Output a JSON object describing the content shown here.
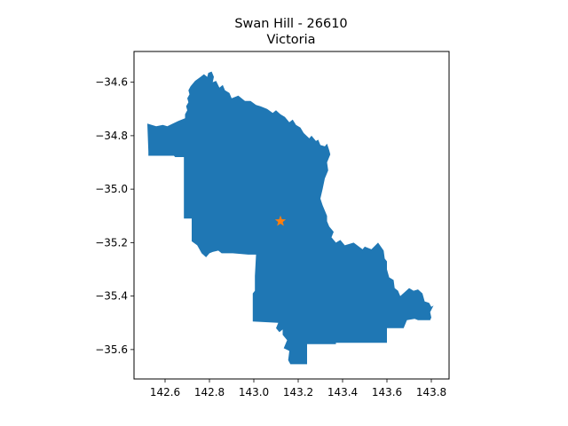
{
  "title": {
    "line1": "Swan Hill - 26610",
    "line2": "Victoria"
  },
  "colors": {
    "region_fill": "#1f77b4",
    "marker": "#ff7f0e",
    "axes": "#000000",
    "background": "#ffffff"
  },
  "chart_data": {
    "type": "map",
    "title": "Swan Hill - 26610\nVictoria",
    "xlabel": "",
    "ylabel": "",
    "xlim": [
      142.46,
      143.88
    ],
    "ylim": [
      -35.71,
      -34.485
    ],
    "x_ticks": [
      142.6,
      142.8,
      143.0,
      143.2,
      143.4,
      143.6,
      143.8
    ],
    "x_tick_labels": [
      "142.6",
      "142.8",
      "143.0",
      "143.2",
      "143.4",
      "143.6",
      "143.8"
    ],
    "y_ticks": [
      -34.6,
      -34.8,
      -35.0,
      -35.2,
      -35.4,
      -35.6
    ],
    "y_tick_labels": [
      "−34.6",
      "−34.8",
      "−35.0",
      "−35.2",
      "−35.4",
      "−35.6"
    ],
    "grid": false,
    "region": {
      "name": "Swan Hill - 26610",
      "fill": "#1f77b4",
      "boundary": [
        [
          142.52,
          -34.755
        ],
        [
          142.56,
          -34.765
        ],
        [
          142.59,
          -34.76
        ],
        [
          142.61,
          -34.765
        ],
        [
          142.635,
          -34.755
        ],
        [
          142.66,
          -34.745
        ],
        [
          142.69,
          -34.735
        ],
        [
          142.69,
          -34.72
        ],
        [
          142.7,
          -34.705
        ],
        [
          142.695,
          -34.69
        ],
        [
          142.705,
          -34.675
        ],
        [
          142.7,
          -34.66
        ],
        [
          142.71,
          -34.645
        ],
        [
          142.705,
          -34.63
        ],
        [
          142.715,
          -34.615
        ],
        [
          142.735,
          -34.595
        ],
        [
          142.76,
          -34.58
        ],
        [
          142.775,
          -34.57
        ],
        [
          142.79,
          -34.58
        ],
        [
          142.795,
          -34.565
        ],
        [
          142.81,
          -34.56
        ],
        [
          142.82,
          -34.58
        ],
        [
          142.815,
          -34.6
        ],
        [
          142.83,
          -34.595
        ],
        [
          142.845,
          -34.62
        ],
        [
          142.86,
          -34.61
        ],
        [
          142.87,
          -34.63
        ],
        [
          142.89,
          -34.64
        ],
        [
          142.9,
          -34.66
        ],
        [
          142.93,
          -34.65
        ],
        [
          142.96,
          -34.67
        ],
        [
          142.985,
          -34.67
        ],
        [
          143.01,
          -34.685
        ],
        [
          143.03,
          -34.69
        ],
        [
          143.06,
          -34.7
        ],
        [
          143.085,
          -34.715
        ],
        [
          143.1,
          -34.705
        ],
        [
          143.12,
          -34.72
        ],
        [
          143.14,
          -34.73
        ],
        [
          143.16,
          -34.75
        ],
        [
          143.175,
          -34.74
        ],
        [
          143.19,
          -34.76
        ],
        [
          143.21,
          -34.77
        ],
        [
          143.225,
          -34.79
        ],
        [
          143.25,
          -34.81
        ],
        [
          143.26,
          -34.8
        ],
        [
          143.28,
          -34.82
        ],
        [
          143.29,
          -34.815
        ],
        [
          143.3,
          -34.835
        ],
        [
          143.32,
          -34.84
        ],
        [
          143.33,
          -34.83
        ],
        [
          143.34,
          -34.855
        ],
        [
          143.345,
          -34.87
        ],
        [
          143.33,
          -34.9
        ],
        [
          143.335,
          -34.93
        ],
        [
          143.32,
          -34.96
        ],
        [
          143.31,
          -35.0
        ],
        [
          143.3,
          -35.035
        ],
        [
          143.31,
          -35.06
        ],
        [
          143.32,
          -35.08
        ],
        [
          143.33,
          -35.1
        ],
        [
          143.33,
          -35.12
        ],
        [
          143.34,
          -35.14
        ],
        [
          143.36,
          -35.16
        ],
        [
          143.35,
          -35.18
        ],
        [
          143.37,
          -35.2
        ],
        [
          143.39,
          -35.19
        ],
        [
          143.41,
          -35.21
        ],
        [
          143.45,
          -35.2
        ],
        [
          143.49,
          -35.225
        ],
        [
          143.5,
          -35.215
        ],
        [
          143.53,
          -35.225
        ],
        [
          143.56,
          -35.2
        ],
        [
          143.585,
          -35.23
        ],
        [
          143.59,
          -35.26
        ],
        [
          143.6,
          -35.27
        ],
        [
          143.6,
          -35.3
        ],
        [
          143.61,
          -35.33
        ],
        [
          143.63,
          -35.34
        ],
        [
          143.635,
          -35.37
        ],
        [
          143.65,
          -35.38
        ],
        [
          143.66,
          -35.4
        ],
        [
          143.68,
          -35.385
        ],
        [
          143.7,
          -35.37
        ],
        [
          143.72,
          -35.38
        ],
        [
          143.74,
          -35.375
        ],
        [
          143.76,
          -35.39
        ],
        [
          143.77,
          -35.42
        ],
        [
          143.79,
          -35.425
        ],
        [
          143.8,
          -35.44
        ],
        [
          143.81,
          -35.435
        ],
        [
          143.795,
          -35.46
        ],
        [
          143.8,
          -35.48
        ],
        [
          143.795,
          -35.49
        ],
        [
          143.74,
          -35.49
        ],
        [
          143.725,
          -35.485
        ],
        [
          143.69,
          -35.49
        ],
        [
          143.675,
          -35.52
        ],
        [
          143.6,
          -35.52
        ],
        [
          143.6,
          -35.575
        ],
        [
          143.37,
          -35.575
        ],
        [
          143.37,
          -35.58
        ],
        [
          143.24,
          -35.58
        ],
        [
          143.24,
          -35.655
        ],
        [
          143.165,
          -35.655
        ],
        [
          143.155,
          -35.64
        ],
        [
          143.16,
          -35.605
        ],
        [
          143.135,
          -35.595
        ],
        [
          143.15,
          -35.565
        ],
        [
          143.13,
          -35.545
        ],
        [
          143.13,
          -35.525
        ],
        [
          143.115,
          -35.535
        ],
        [
          143.1,
          -35.52
        ],
        [
          143.11,
          -35.5
        ],
        [
          142.995,
          -35.495
        ],
        [
          142.995,
          -35.39
        ],
        [
          143.005,
          -35.38
        ],
        [
          143.005,
          -35.325
        ],
        [
          143.01,
          -35.245
        ],
        [
          142.975,
          -35.245
        ],
        [
          142.905,
          -35.24
        ],
        [
          142.855,
          -35.24
        ],
        [
          142.84,
          -35.23
        ],
        [
          142.815,
          -35.235
        ],
        [
          142.8,
          -35.24
        ],
        [
          142.785,
          -35.255
        ],
        [
          142.765,
          -35.24
        ],
        [
          142.745,
          -35.21
        ],
        [
          142.72,
          -35.195
        ],
        [
          142.72,
          -35.2
        ],
        [
          142.72,
          -35.11
        ],
        [
          142.685,
          -35.11
        ],
        [
          142.685,
          -35.06
        ],
        [
          142.685,
          -34.88
        ],
        [
          142.645,
          -34.88
        ],
        [
          142.64,
          -34.875
        ],
        [
          142.525,
          -34.875
        ],
        [
          142.525,
          -34.86
        ],
        [
          142.52,
          -34.755
        ]
      ]
    },
    "marker": {
      "shape": "star",
      "x": 143.12,
      "y": -35.12,
      "color": "#ff7f0e"
    }
  }
}
